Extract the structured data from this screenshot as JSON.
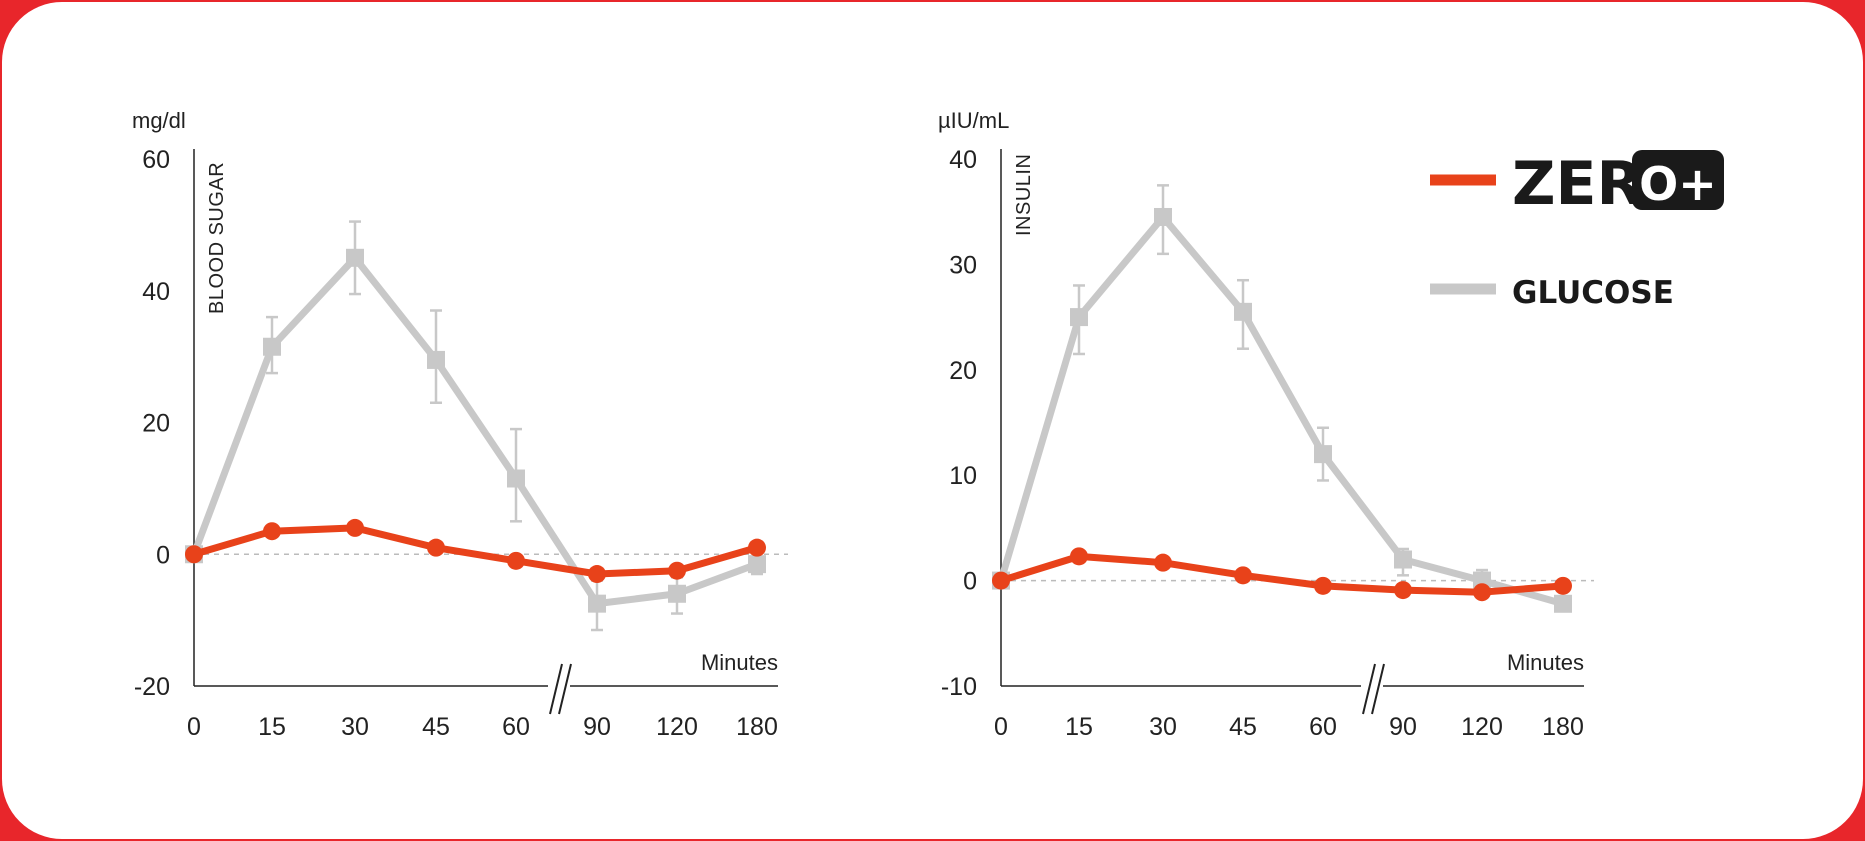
{
  "colors": {
    "zero": "#e8421a",
    "glucose": "#c8c8c8",
    "axis": "#222222",
    "baseline": "#bbbbbb"
  },
  "legend": {
    "zero_label": "ZERO",
    "zero_badge": "O+",
    "glucose_label": "GLUCOSE"
  },
  "chart_data": [
    {
      "type": "line",
      "unit_label": "mg/dl",
      "ylabel": "BLOOD SUGAR",
      "xlabel": "Minutes",
      "categories": [
        "0",
        "15",
        "30",
        "45",
        "60",
        "90",
        "120",
        "180"
      ],
      "axis_break_between": [
        "60",
        "90"
      ],
      "ylim": [
        -20,
        60
      ],
      "yticks": [
        60,
        40,
        20,
        0,
        -20
      ],
      "series": [
        {
          "key": "glucose",
          "values": [
            0,
            31.5,
            45,
            29.5,
            11.5,
            -7.5,
            -6,
            -1.5
          ],
          "error_high": [
            null,
            36,
            50.5,
            37,
            19,
            -4,
            -3.5,
            -0.5
          ],
          "error_low": [
            null,
            27.5,
            39.5,
            23,
            5,
            -11.5,
            -9,
            -3
          ]
        },
        {
          "key": "zero",
          "values": [
            0,
            3.5,
            4,
            1,
            -1,
            -3,
            -2.5,
            1
          ],
          "error_high": [
            null,
            null,
            null,
            null,
            null,
            null,
            null,
            null
          ],
          "error_low": [
            null,
            null,
            null,
            null,
            null,
            null,
            null,
            null
          ]
        }
      ]
    },
    {
      "type": "line",
      "unit_label": "µIU/mL",
      "ylabel": "INSULIN",
      "xlabel": "Minutes",
      "categories": [
        "0",
        "15",
        "30",
        "45",
        "60",
        "90",
        "120",
        "180"
      ],
      "axis_break_between": [
        "60",
        "90"
      ],
      "ylim": [
        -10,
        40
      ],
      "yticks": [
        40,
        30,
        20,
        10,
        0,
        -10
      ],
      "series": [
        {
          "key": "glucose",
          "values": [
            0,
            25,
            34.5,
            25.5,
            12,
            2,
            0,
            -2.2
          ],
          "error_high": [
            null,
            28,
            37.5,
            28.5,
            14.5,
            3,
            1,
            null
          ],
          "error_low": [
            null,
            21.5,
            31,
            22,
            9.5,
            0.5,
            -1,
            null
          ]
        },
        {
          "key": "zero",
          "values": [
            0,
            2.3,
            1.7,
            0.5,
            -0.5,
            -0.9,
            -1.1,
            -0.5
          ],
          "error_high": [
            null,
            null,
            null,
            null,
            null,
            null,
            null,
            null
          ],
          "error_low": [
            null,
            null,
            null,
            null,
            null,
            null,
            null,
            null
          ]
        }
      ]
    }
  ]
}
